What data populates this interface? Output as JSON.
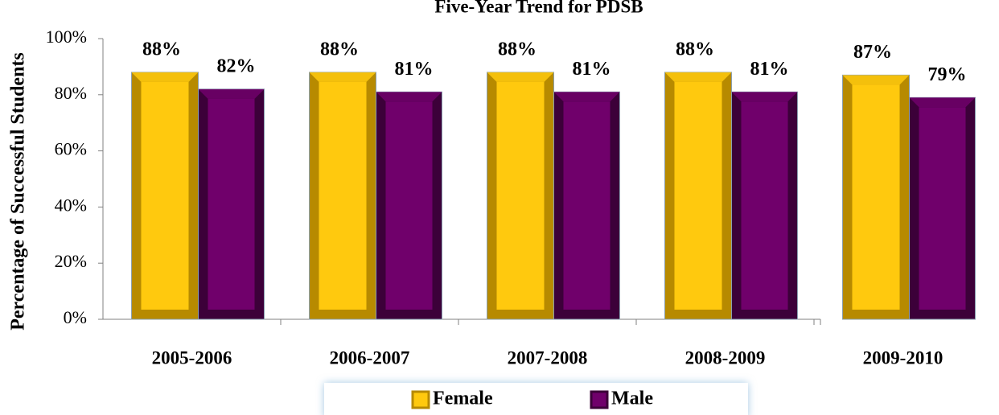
{
  "chart_data": {
    "type": "bar",
    "title": "Five-Year Trend for PDSB",
    "y_label": "Percentage of Successful Students",
    "categories": [
      "2005-2006",
      "2006-2007",
      "2007-2008",
      "2008-2009",
      "2009-2010"
    ],
    "series": [
      {
        "name": "Female",
        "color": "#ffc90e",
        "values": [
          88,
          88,
          88,
          88,
          87
        ],
        "value_labels": [
          "88%",
          "88%",
          "88%",
          "88%",
          "87%"
        ]
      },
      {
        "name": "Male",
        "color": "#70006b",
        "values": [
          82,
          81,
          81,
          81,
          79
        ],
        "value_labels": [
          "82%",
          "81%",
          "81%",
          "81%",
          "79%"
        ]
      }
    ],
    "ylim": [
      0,
      100
    ],
    "yticks": [
      {
        "value": 0,
        "label": "0%"
      },
      {
        "value": 20,
        "label": "20%"
      },
      {
        "value": 40,
        "label": "40%"
      },
      {
        "value": 60,
        "label": "60%"
      },
      {
        "value": 80,
        "label": "80%"
      },
      {
        "value": 100,
        "label": "100%"
      }
    ],
    "grid": false,
    "legend": "bottom"
  }
}
